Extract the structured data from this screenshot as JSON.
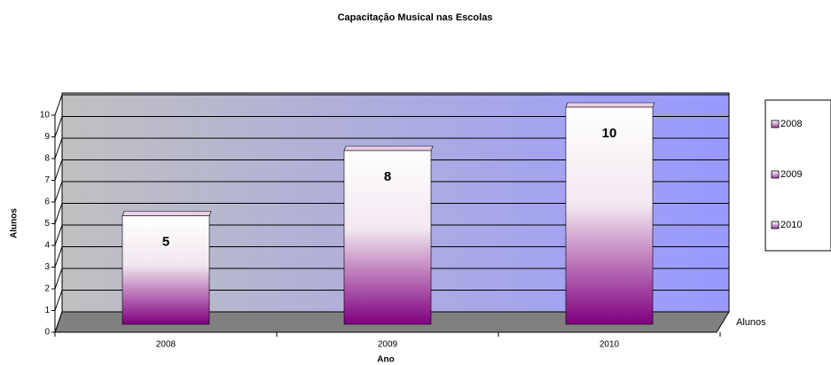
{
  "chart_data": {
    "type": "bar",
    "title": "Capacitação Musical nas Escolas",
    "x_label": "Ano",
    "y_label": "Alunos",
    "categories": [
      "2008",
      "2009",
      "2010"
    ],
    "series": [
      {
        "name": "Alunos",
        "color": "#800080",
        "values": [
          5,
          8,
          10
        ]
      }
    ],
    "ylim": [
      0,
      10
    ],
    "yticks": [
      0,
      1,
      2,
      3,
      4,
      5,
      6,
      7,
      8,
      9,
      10
    ],
    "grid": true,
    "legend": "right"
  }
}
